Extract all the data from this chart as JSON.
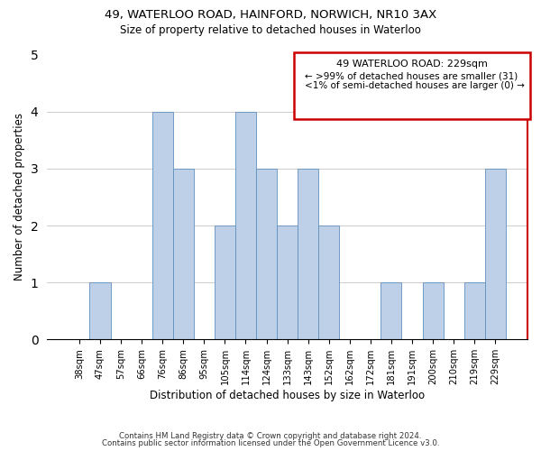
{
  "title1": "49, WATERLOO ROAD, HAINFORD, NORWICH, NR10 3AX",
  "title2": "Size of property relative to detached houses in Waterloo",
  "xlabel": "Distribution of detached houses by size in Waterloo",
  "ylabel": "Number of detached properties",
  "categories": [
    "38sqm",
    "47sqm",
    "57sqm",
    "66sqm",
    "76sqm",
    "86sqm",
    "95sqm",
    "105sqm",
    "114sqm",
    "124sqm",
    "133sqm",
    "143sqm",
    "152sqm",
    "162sqm",
    "172sqm",
    "181sqm",
    "191sqm",
    "200sqm",
    "210sqm",
    "219sqm",
    "229sqm"
  ],
  "values": [
    0,
    1,
    0,
    0,
    4,
    3,
    0,
    2,
    4,
    3,
    2,
    3,
    2,
    0,
    0,
    1,
    0,
    1,
    0,
    1,
    3
  ],
  "bar_color": "#bdd0e8",
  "bar_edge_color": "#6090c0",
  "highlight_border_color": "#cc0000",
  "ylim": [
    0,
    5
  ],
  "yticks": [
    0,
    1,
    2,
    3,
    4,
    5
  ],
  "legend_title": "49 WATERLOO ROAD: 229sqm",
  "legend_line1": "← >99% of detached houses are smaller (31)",
  "legend_line2": "<1% of semi-detached houses are larger (0) →",
  "legend_border_color": "#cc0000",
  "footer1": "Contains HM Land Registry data © Crown copyright and database right 2024.",
  "footer2": "Contains public sector information licensed under the Open Government Licence v3.0."
}
